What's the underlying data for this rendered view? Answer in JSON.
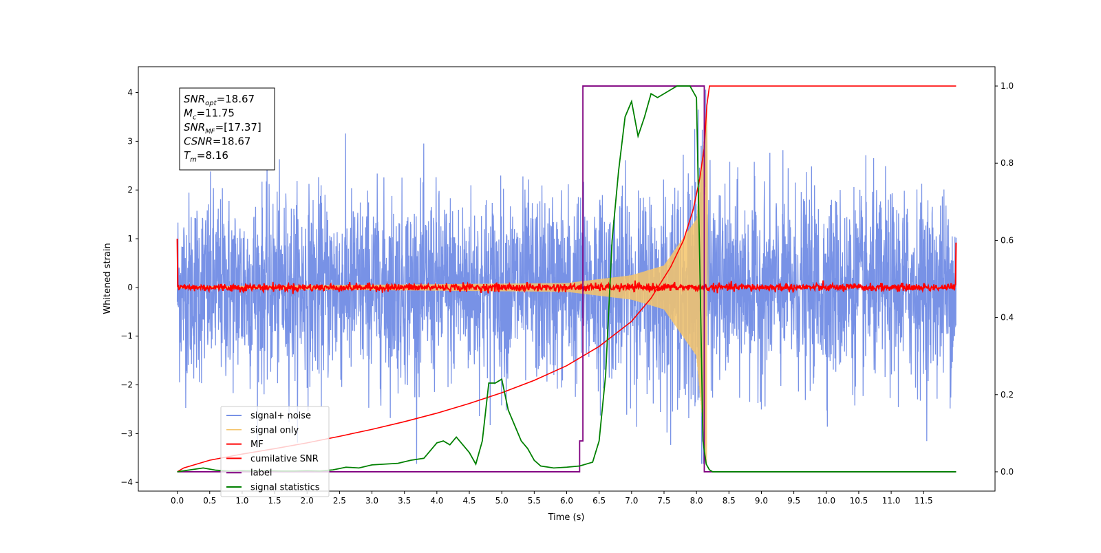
{
  "chart_data": {
    "type": "line",
    "xlabel": "Time (s)",
    "ylabel": "Whitened strain",
    "xlim": [
      -0.6,
      12.6
    ],
    "ylim": [
      -4.18,
      4.53
    ],
    "ylim_right": [
      -0.05,
      1.05
    ],
    "x_ticks": [
      0.0,
      0.5,
      1.0,
      1.5,
      2.0,
      2.5,
      3.0,
      3.5,
      4.0,
      4.5,
      5.0,
      5.5,
      6.0,
      6.5,
      7.0,
      7.5,
      8.0,
      8.5,
      9.0,
      9.5,
      10.0,
      10.5,
      11.0,
      11.5
    ],
    "x_tick_labels": [
      "0.0",
      "0.5",
      "1.0",
      "1.5",
      "2.0",
      "2.5",
      "3.0",
      "3.5",
      "4.0",
      "4.5",
      "5.0",
      "5.5",
      "6.0",
      "6.5",
      "7.0",
      "7.5",
      "8.0",
      "8.5",
      "9.0",
      "9.5",
      "10.0",
      "10.5",
      "11.0",
      "11.5"
    ],
    "y_ticks": [
      -4,
      -3,
      -2,
      -1,
      0,
      1,
      2,
      3,
      4
    ],
    "y_tick_labels": [
      "−4",
      "−3",
      "−2",
      "−1",
      "0",
      "1",
      "2",
      "3",
      "4"
    ],
    "y_right_ticks": [
      0.0,
      0.2,
      0.4,
      0.6,
      0.8,
      1.0
    ],
    "y_right_tick_labels": [
      "0.0",
      "0.2",
      "0.4",
      "0.6",
      "0.8",
      "1.0"
    ],
    "grid": false,
    "legend_placement": "lower-left",
    "info_box": [
      {
        "sym": "SNR",
        "sub": "opt",
        "val": "=18.67"
      },
      {
        "sym": "M",
        "sub": "c",
        "val": "=11.75"
      },
      {
        "sym": "SNR",
        "sub": "MF",
        "val": "=[17.37]"
      },
      {
        "sym": "CSNR",
        "sub": "",
        "val": "=18.67"
      },
      {
        "sym": "T",
        "sub": "m",
        "val": "=8.16"
      }
    ],
    "series": [
      {
        "name": "signal+ noise",
        "color": "#7892e6",
        "axis": "left",
        "description_values": {
          "x_range": [
            0.0,
            12.0
          ],
          "envelope_std": 0.95,
          "peak_min": -3.62,
          "peak_max": 4.17
        }
      },
      {
        "name": "signal only",
        "color": "#f5c46a",
        "axis": "left",
        "description_values": {
          "x_range": [
            0.0,
            8.16
          ],
          "chirp_amplitude_at": [
            [
              0.0,
              0.02
            ],
            [
              6.0,
              0.09
            ],
            [
              7.0,
              0.25
            ],
            [
              7.5,
              0.45
            ],
            [
              8.0,
              1.4
            ],
            [
              8.16,
              3.7
            ]
          ]
        }
      },
      {
        "name": "MF",
        "color": "#ff0000",
        "axis": "left",
        "description_values": {
          "x_range": [
            0.0,
            12.0
          ],
          "baseline": 0.0,
          "noise_std": 0.04,
          "start_value": 1.0,
          "end_value": 0.92
        }
      },
      {
        "name": "cumilative SNR",
        "color": "#ff0000",
        "axis": "right",
        "x": [
          0.0,
          0.1,
          0.5,
          1.0,
          1.5,
          2.0,
          2.5,
          3.0,
          3.5,
          4.0,
          4.5,
          5.0,
          5.5,
          6.0,
          6.5,
          7.0,
          7.3,
          7.6,
          7.8,
          7.95,
          8.05,
          8.12,
          8.16,
          8.2,
          12.0
        ],
        "values": [
          0.0,
          0.01,
          0.03,
          0.046,
          0.06,
          0.075,
          0.092,
          0.11,
          0.13,
          0.152,
          0.177,
          0.205,
          0.237,
          0.275,
          0.325,
          0.39,
          0.45,
          0.53,
          0.6,
          0.68,
          0.76,
          0.84,
          0.95,
          1.0,
          1.0
        ]
      },
      {
        "name": "label",
        "color": "#800080",
        "axis": "right",
        "x": [
          0.0,
          6.2,
          6.2,
          6.25,
          6.25,
          8.12,
          8.12,
          12.0
        ],
        "values": [
          0.0,
          0.0,
          0.08,
          0.08,
          1.0,
          1.0,
          0.0,
          0.0
        ]
      },
      {
        "name": "signal statistics",
        "color": "#008000",
        "axis": "right",
        "x": [
          0.0,
          0.2,
          0.4,
          0.6,
          0.8,
          1.0,
          1.2,
          1.4,
          1.6,
          1.8,
          2.0,
          2.2,
          2.4,
          2.6,
          2.8,
          3.0,
          3.2,
          3.4,
          3.6,
          3.8,
          4.0,
          4.1,
          4.2,
          4.3,
          4.4,
          4.5,
          4.6,
          4.7,
          4.8,
          4.9,
          5.0,
          5.1,
          5.2,
          5.3,
          5.4,
          5.5,
          5.6,
          5.8,
          6.0,
          6.2,
          6.4,
          6.5,
          6.6,
          6.7,
          6.8,
          6.9,
          7.0,
          7.1,
          7.2,
          7.3,
          7.4,
          7.5,
          7.6,
          7.7,
          7.8,
          7.9,
          8.0,
          8.05,
          8.1,
          8.15,
          8.2,
          8.25,
          8.3,
          12.0
        ],
        "values": [
          0.0,
          0.005,
          0.01,
          0.004,
          0.002,
          0.003,
          0.002,
          0.003,
          0.002,
          0.002,
          0.003,
          0.002,
          0.005,
          0.012,
          0.01,
          0.018,
          0.02,
          0.022,
          0.03,
          0.035,
          0.075,
          0.08,
          0.07,
          0.09,
          0.07,
          0.05,
          0.02,
          0.08,
          0.23,
          0.23,
          0.24,
          0.16,
          0.12,
          0.08,
          0.06,
          0.03,
          0.015,
          0.01,
          0.012,
          0.015,
          0.025,
          0.08,
          0.25,
          0.6,
          0.78,
          0.92,
          0.96,
          0.87,
          0.92,
          0.98,
          0.97,
          0.98,
          0.99,
          1.0,
          1.0,
          1.0,
          0.97,
          0.55,
          0.08,
          0.02,
          0.005,
          0.0,
          0.0,
          0.0
        ]
      }
    ]
  }
}
